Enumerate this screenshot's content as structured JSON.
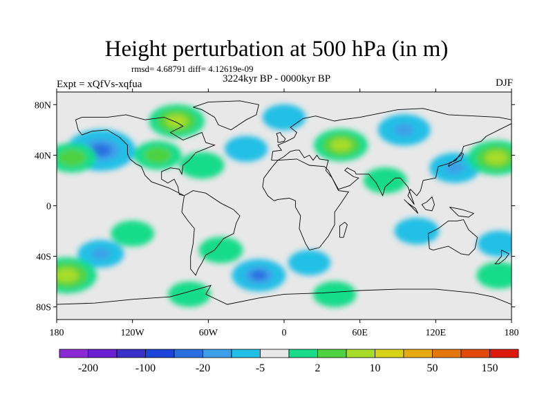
{
  "title": "Height perturbation at 500 hPa (in m)",
  "stats_line": "rmsd= 4.68791 diff= 4.12619e-09",
  "period_line": "3224kyr BP - 0000kyr BP",
  "expt_line": "Expt = xQfVs-xqfua",
  "season": "DJF",
  "map": {
    "projection": "cylindrical-equidistant",
    "lon_range": [
      -180,
      180
    ],
    "lat_range": [
      -90,
      90
    ],
    "background_color": "#e8e8e8",
    "coastline_color": "#000000",
    "lat_ticks": [
      {
        "value": 80,
        "label": "80N"
      },
      {
        "value": 40,
        "label": "40N"
      },
      {
        "value": 0,
        "label": "0"
      },
      {
        "value": -40,
        "label": "40S"
      },
      {
        "value": -80,
        "label": "80S"
      }
    ],
    "lon_ticks": [
      {
        "value": -180,
        "label": "180"
      },
      {
        "value": -120,
        "label": "120W"
      },
      {
        "value": -60,
        "label": "60W"
      },
      {
        "value": 0,
        "label": "0"
      },
      {
        "value": 60,
        "label": "60E"
      },
      {
        "value": 120,
        "label": "120E"
      },
      {
        "value": 180,
        "label": "180"
      }
    ]
  },
  "colorbar": {
    "colors": [
      "#8c2bd6",
      "#6a1fd0",
      "#3b2fc9",
      "#1d44d8",
      "#2a6fe0",
      "#3ca0e8",
      "#22bfe6",
      "#e8e8e8",
      "#19dc8a",
      "#4fd23f",
      "#a7dc2a",
      "#d8d218",
      "#e6aa12",
      "#e4780e",
      "#e24a0c",
      "#dd1a0a"
    ],
    "labels": [
      {
        "after_box": 1,
        "text": "-200"
      },
      {
        "after_box": 3,
        "text": "-100"
      },
      {
        "after_box": 5,
        "text": "-20"
      },
      {
        "after_box": 7,
        "text": "-5"
      },
      {
        "after_box": 9,
        "text": "2"
      },
      {
        "after_box": 11,
        "text": "10"
      },
      {
        "after_box": 13,
        "text": "50"
      },
      {
        "after_box": 15,
        "text": "150"
      }
    ]
  },
  "anomaly_fields": [
    {
      "lon": -145,
      "lat": 44,
      "value": -40
    },
    {
      "lon": -85,
      "lat": 67,
      "value": 22
    },
    {
      "lon": -100,
      "lat": 40,
      "value": 12
    },
    {
      "lon": -168,
      "lat": 38,
      "value": 14
    },
    {
      "lon": -65,
      "lat": 32,
      "value": 8
    },
    {
      "lon": -30,
      "lat": 45,
      "value": -6
    },
    {
      "lon": 45,
      "lat": 48,
      "value": 20
    },
    {
      "lon": 0,
      "lat": 70,
      "value": -6
    },
    {
      "lon": 95,
      "lat": 60,
      "value": -18
    },
    {
      "lon": 135,
      "lat": 30,
      "value": -15
    },
    {
      "lon": 168,
      "lat": 38,
      "value": 25
    },
    {
      "lon": 80,
      "lat": 20,
      "value": 6
    },
    {
      "lon": 105,
      "lat": -20,
      "value": -8
    },
    {
      "lon": 170,
      "lat": -30,
      "value": -6
    },
    {
      "lon": -145,
      "lat": -38,
      "value": -10
    },
    {
      "lon": -120,
      "lat": -22,
      "value": 6
    },
    {
      "lon": -50,
      "lat": -35,
      "value": 7
    },
    {
      "lon": -20,
      "lat": -55,
      "value": -20
    },
    {
      "lon": -75,
      "lat": -70,
      "value": 5
    },
    {
      "lon": 40,
      "lat": -70,
      "value": 6
    },
    {
      "lon": -172,
      "lat": -55,
      "value": 28
    },
    {
      "lon": 170,
      "lat": -55,
      "value": 8
    },
    {
      "lon": 20,
      "lat": -45,
      "value": -5
    }
  ]
}
